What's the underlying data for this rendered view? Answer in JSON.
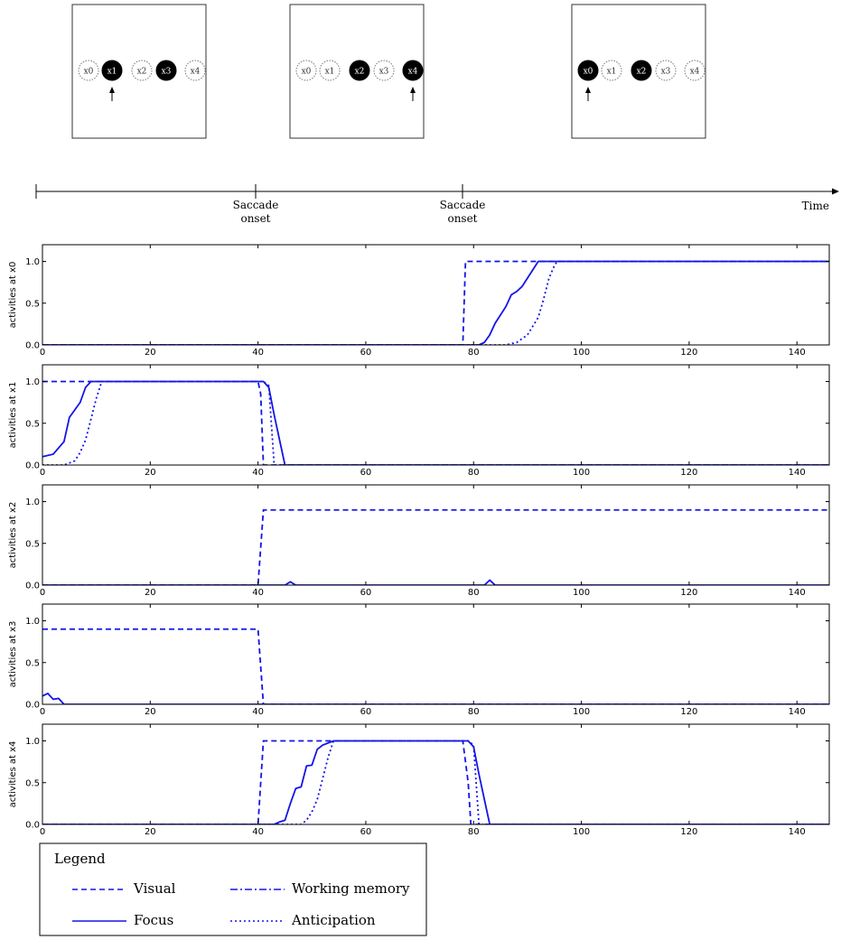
{
  "colors": {
    "series": "#1515e6",
    "axis": "#000000",
    "dot_fill": "#000000",
    "dot_outline": "#777777"
  },
  "scenes": [
    {
      "dots": [
        {
          "label": "x0",
          "filled": false
        },
        {
          "label": "x1",
          "filled": true
        },
        {
          "label": "x2",
          "filled": false
        },
        {
          "label": "x3",
          "filled": true
        },
        {
          "label": "x4",
          "filled": false
        }
      ],
      "arrow_under": "x1"
    },
    {
      "dots": [
        {
          "label": "x0",
          "filled": false
        },
        {
          "label": "x1",
          "filled": false
        },
        {
          "label": "x2",
          "filled": true
        },
        {
          "label": "x3",
          "filled": false
        },
        {
          "label": "x4",
          "filled": true
        }
      ],
      "arrow_under": "x4"
    },
    {
      "dots": [
        {
          "label": "x0",
          "filled": true
        },
        {
          "label": "x1",
          "filled": false
        },
        {
          "label": "x2",
          "filled": true
        },
        {
          "label": "x3",
          "filled": false
        },
        {
          "label": "x4",
          "filled": false
        }
      ],
      "arrow_under": "x0"
    }
  ],
  "timeline": {
    "events": [
      {
        "line1": "Saccade",
        "line2": "onset",
        "at": 40
      },
      {
        "line1": "Saccade",
        "line2": "onset",
        "at": 79
      }
    ],
    "end_label": "Time"
  },
  "legend": {
    "title": "Legend",
    "items": [
      {
        "label": "Visual",
        "style": "dashed"
      },
      {
        "label": "Working memory",
        "style": "dashdot"
      },
      {
        "label": "Focus",
        "style": "solid"
      },
      {
        "label": "Anticipation",
        "style": "dotted"
      }
    ]
  },
  "chart_data": [
    {
      "type": "line",
      "ylabel": "activities at x0",
      "xlim": [
        0,
        146
      ],
      "ylim": [
        0,
        1.2
      ],
      "xticks": [
        "0",
        "20",
        "40",
        "60",
        "80",
        "100",
        "120",
        "140"
      ],
      "yticks": [
        "0.0",
        "0.5",
        "1.0"
      ],
      "series": [
        {
          "style": "dashed",
          "points": [
            [
              0,
              0
            ],
            [
              78,
              0
            ],
            [
              78.5,
              1
            ],
            [
              146,
              1
            ]
          ]
        },
        {
          "style": "solid",
          "points": [
            [
              0,
              0
            ],
            [
              81,
              0
            ],
            [
              82,
              0.03
            ],
            [
              83,
              0.12
            ],
            [
              84,
              0.26
            ],
            [
              85,
              0.36
            ],
            [
              86,
              0.46
            ],
            [
              87,
              0.6
            ],
            [
              88,
              0.64
            ],
            [
              89,
              0.7
            ],
            [
              90,
              0.8
            ],
            [
              91,
              0.9
            ],
            [
              92,
              1
            ],
            [
              146,
              1
            ]
          ]
        },
        {
          "style": "dotted",
          "points": [
            [
              0,
              0
            ],
            [
              86,
              0
            ],
            [
              88,
              0.03
            ],
            [
              90,
              0.12
            ],
            [
              92,
              0.33
            ],
            [
              93,
              0.55
            ],
            [
              94,
              0.8
            ],
            [
              95,
              0.95
            ],
            [
              95.5,
              1
            ],
            [
              146,
              1
            ]
          ]
        }
      ]
    },
    {
      "type": "line",
      "ylabel": "activities at x1",
      "xlim": [
        0,
        146
      ],
      "ylim": [
        0,
        1.2
      ],
      "xticks": [
        "0",
        "20",
        "40",
        "60",
        "80",
        "100",
        "120",
        "140"
      ],
      "yticks": [
        "0.0",
        "0.5",
        "1.0"
      ],
      "series": [
        {
          "style": "dashed",
          "points": [
            [
              0,
              1
            ],
            [
              40,
              1
            ],
            [
              40.5,
              0.85
            ],
            [
              41,
              0
            ],
            [
              146,
              0
            ]
          ]
        },
        {
          "style": "solid",
          "points": [
            [
              0,
              0.1
            ],
            [
              2,
              0.13
            ],
            [
              4,
              0.28
            ],
            [
              5,
              0.57
            ],
            [
              7,
              0.75
            ],
            [
              8,
              0.93
            ],
            [
              9,
              1
            ],
            [
              41,
              1
            ],
            [
              42,
              0.93
            ],
            [
              43,
              0.6
            ],
            [
              44,
              0.3
            ],
            [
              45,
              0
            ],
            [
              146,
              0
            ]
          ]
        },
        {
          "style": "dotted",
          "points": [
            [
              0,
              0
            ],
            [
              4,
              0
            ],
            [
              6,
              0.05
            ],
            [
              7,
              0.15
            ],
            [
              8,
              0.3
            ],
            [
              9,
              0.55
            ],
            [
              10,
              0.8
            ],
            [
              11,
              1
            ],
            [
              41,
              1
            ],
            [
              42,
              0.95
            ],
            [
              43,
              0
            ],
            [
              146,
              0
            ]
          ]
        }
      ]
    },
    {
      "type": "line",
      "ylabel": "activities at x2",
      "xlim": [
        0,
        146
      ],
      "ylim": [
        0,
        1.2
      ],
      "xticks": [
        "0",
        "20",
        "40",
        "60",
        "80",
        "100",
        "120",
        "140"
      ],
      "yticks": [
        "0.0",
        "0.5",
        "1.0"
      ],
      "series": [
        {
          "style": "dashed",
          "points": [
            [
              0,
              0
            ],
            [
              40,
              0
            ],
            [
              41,
              0.9
            ],
            [
              146,
              0.9
            ]
          ]
        },
        {
          "style": "solid",
          "points": [
            [
              0,
              0
            ],
            [
              45,
              0
            ],
            [
              46,
              0.04
            ],
            [
              47,
              0
            ],
            [
              82,
              0
            ],
            [
              83,
              0.06
            ],
            [
              84,
              0
            ],
            [
              146,
              0
            ]
          ]
        }
      ]
    },
    {
      "type": "line",
      "ylabel": "activities at x3",
      "xlim": [
        0,
        146
      ],
      "ylim": [
        0,
        1.2
      ],
      "xticks": [
        "0",
        "20",
        "40",
        "60",
        "80",
        "100",
        "120",
        "140"
      ],
      "yticks": [
        "0.0",
        "0.5",
        "1.0"
      ],
      "series": [
        {
          "style": "dashed",
          "points": [
            [
              0,
              0.9
            ],
            [
              40,
              0.9
            ],
            [
              41,
              0
            ],
            [
              146,
              0
            ]
          ]
        },
        {
          "style": "solid",
          "points": [
            [
              0,
              0.1
            ],
            [
              1,
              0.13
            ],
            [
              2,
              0.06
            ],
            [
              3,
              0.07
            ],
            [
              4,
              0
            ],
            [
              146,
              0
            ]
          ]
        }
      ]
    },
    {
      "type": "line",
      "ylabel": "activities at x4",
      "xlim": [
        0,
        146
      ],
      "ylim": [
        0,
        1.2
      ],
      "xticks": [
        "0",
        "20",
        "40",
        "60",
        "80",
        "100",
        "120",
        "140"
      ],
      "yticks": [
        "0.0",
        "0.5",
        "1.0"
      ],
      "series": [
        {
          "style": "dashed",
          "points": [
            [
              0,
              0
            ],
            [
              40,
              0
            ],
            [
              41,
              1
            ],
            [
              78,
              1
            ],
            [
              79,
              0.5
            ],
            [
              79.5,
              0
            ],
            [
              146,
              0
            ]
          ]
        },
        {
          "style": "solid",
          "points": [
            [
              0,
              0
            ],
            [
              43,
              0
            ],
            [
              44,
              0.03
            ],
            [
              45,
              0.05
            ],
            [
              46,
              0.25
            ],
            [
              47,
              0.43
            ],
            [
              48,
              0.45
            ],
            [
              49,
              0.7
            ],
            [
              50,
              0.71
            ],
            [
              51,
              0.9
            ],
            [
              52,
              0.95
            ],
            [
              54,
              1
            ],
            [
              79,
              1
            ],
            [
              80,
              0.93
            ],
            [
              81,
              0.6
            ],
            [
              82,
              0.3
            ],
            [
              83,
              0
            ],
            [
              146,
              0
            ]
          ]
        },
        {
          "style": "dotted",
          "points": [
            [
              0,
              0
            ],
            [
              48,
              0
            ],
            [
              49,
              0.05
            ],
            [
              50,
              0.15
            ],
            [
              51,
              0.3
            ],
            [
              52,
              0.55
            ],
            [
              53,
              0.8
            ],
            [
              54,
              1
            ],
            [
              79,
              1
            ],
            [
              80,
              0.95
            ],
            [
              81,
              0
            ],
            [
              146,
              0
            ]
          ]
        }
      ]
    }
  ]
}
